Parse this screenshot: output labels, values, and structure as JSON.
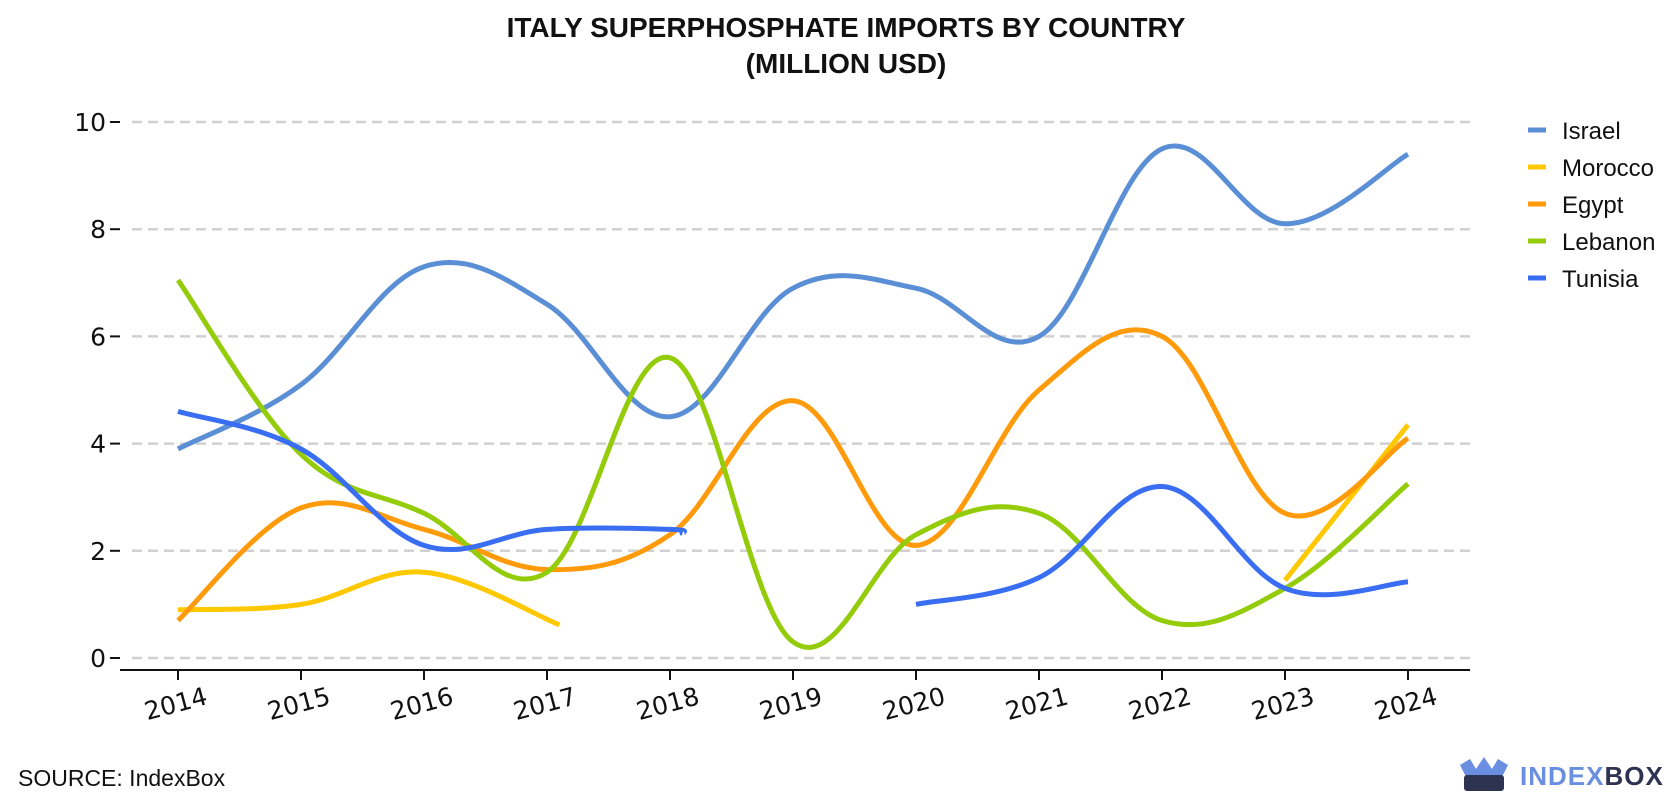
{
  "source": "SOURCE: IndexBox",
  "logo": {
    "part1": "INDEX",
    "part2": "BOX"
  },
  "chart_data": {
    "type": "line",
    "title": [
      "ITALY SUPERPHOSPHATE IMPORTS BY COUNTRY",
      "(MILLION USD)"
    ],
    "xlabel": "",
    "ylabel": "",
    "ylim": [
      0,
      10
    ],
    "y_ticks": [
      0,
      2,
      4,
      6,
      8,
      10
    ],
    "x_ticks": [
      2014,
      2015,
      2016,
      2017,
      2018,
      2019,
      2020,
      2021,
      2022,
      2023,
      2024
    ],
    "x_tick_labels": [
      "2014",
      "2015",
      "2016",
      "2017",
      "2018",
      "2019",
      "2020",
      "2021",
      "2022",
      "2023",
      "2024"
    ],
    "grid": "horizontal dashed",
    "legend_position": "right-top",
    "series": [
      {
        "name": "Israel",
        "color": "#5a8fd6",
        "points": [
          [
            2014,
            3.9
          ],
          [
            2015,
            5.1
          ],
          [
            2016,
            7.3
          ],
          [
            2017,
            6.6
          ],
          [
            2018,
            4.5
          ],
          [
            2019,
            6.9
          ],
          [
            2020,
            6.9
          ],
          [
            2021,
            6.0
          ],
          [
            2022,
            9.5
          ],
          [
            2023,
            8.1
          ],
          [
            2024,
            9.4
          ]
        ]
      },
      {
        "name": "Morocco",
        "color": "#ffc800",
        "points": [
          [
            2014,
            0.9
          ],
          [
            2015,
            1.0
          ],
          [
            2016,
            1.6
          ],
          [
            2017.1,
            0.62
          ],
          [
            2023,
            1.45
          ],
          [
            2024,
            4.35
          ]
        ]
      },
      {
        "name": "Egypt",
        "color": "#ff9b0a",
        "points": [
          [
            2014,
            0.7
          ],
          [
            2015,
            2.8
          ],
          [
            2016,
            2.4
          ],
          [
            2017,
            1.65
          ],
          [
            2018,
            2.3
          ],
          [
            2019,
            4.8
          ],
          [
            2020,
            2.1
          ],
          [
            2021,
            5.0
          ],
          [
            2022,
            6.0
          ],
          [
            2023,
            2.7
          ],
          [
            2024,
            4.1
          ]
        ]
      },
      {
        "name": "Lebanon",
        "color": "#94cc0a",
        "points": [
          [
            2014,
            7.05
          ],
          [
            2015,
            3.8
          ],
          [
            2016,
            2.7
          ],
          [
            2017,
            1.6
          ],
          [
            2018,
            5.6
          ],
          [
            2019,
            0.3
          ],
          [
            2020,
            2.3
          ],
          [
            2021,
            2.7
          ],
          [
            2022,
            0.7
          ],
          [
            2023,
            1.3
          ],
          [
            2024,
            3.25
          ]
        ]
      },
      {
        "name": "Tunisia",
        "color": "#3a6ef2",
        "points": [
          [
            2014,
            4.6
          ],
          [
            2015,
            3.9
          ],
          [
            2016,
            2.1
          ],
          [
            2017,
            2.4
          ],
          [
            2018,
            2.4
          ],
          [
            2018.1,
            2.32
          ],
          [
            2020,
            1.0
          ],
          [
            2021,
            1.5
          ],
          [
            2022,
            3.2
          ],
          [
            2023,
            1.3
          ],
          [
            2024,
            1.42
          ]
        ]
      }
    ]
  }
}
